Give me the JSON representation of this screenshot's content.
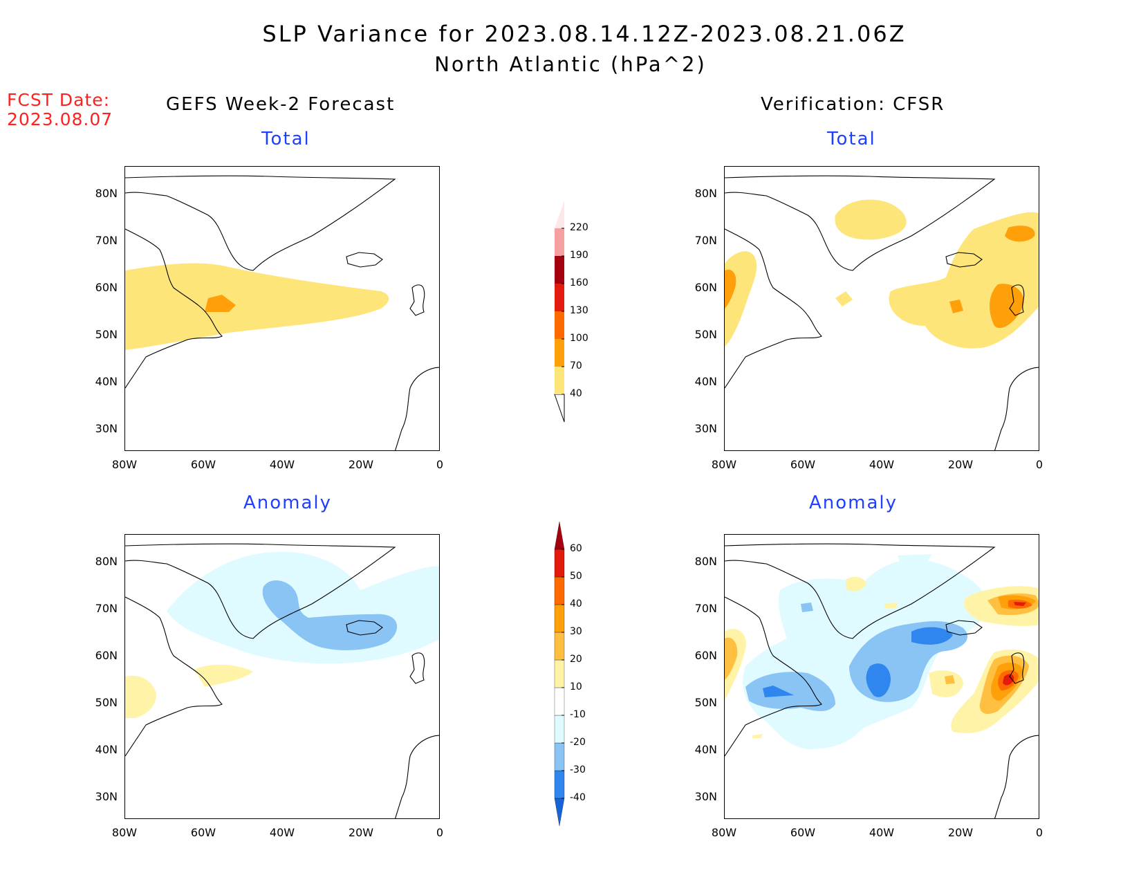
{
  "title": {
    "line1": "SLP Variance for 2023.08.14.12Z-2023.08.21.06Z",
    "line2": "North Atlantic (hPa^2)"
  },
  "fcst": {
    "line1": "FCST Date:",
    "line2": "2023.08.07"
  },
  "columns": {
    "left": "GEFS Week-2 Forecast",
    "right": "Verification: CFSR"
  },
  "panels": {
    "total": "Total",
    "anomaly": "Anomaly"
  },
  "axes": {
    "lat_ticks": [
      "80N",
      "70N",
      "60N",
      "50N",
      "40N",
      "30N"
    ],
    "lon_ticks": [
      "80W",
      "60W",
      "40W",
      "20W",
      "0"
    ]
  },
  "colorbar_total": {
    "levels": [
      "40",
      "70",
      "100",
      "130",
      "160",
      "190",
      "220"
    ],
    "colors": [
      "#fee57a",
      "#ff9f0a",
      "#ff6a00",
      "#e31a0e",
      "#a50010",
      "#f5a0a0",
      "#fde8e8"
    ]
  },
  "colorbar_anomaly": {
    "levels": [
      "-40",
      "-30",
      "-20",
      "-10",
      "10",
      "20",
      "30",
      "40",
      "50",
      "60"
    ],
    "colors": [
      "#1565d8",
      "#2e86ee",
      "#8ac4f5",
      "#e0fbff",
      "#ffffff",
      "#fff3a8",
      "#ffbf40",
      "#ff9f0a",
      "#ff6a00",
      "#e31a0e",
      "#a50010"
    ]
  }
}
